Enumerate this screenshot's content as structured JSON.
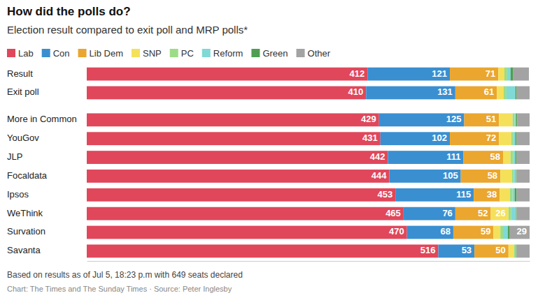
{
  "chart_data": {
    "type": "bar",
    "title": "How did the polls do?",
    "subtitle": "Election result compared to exit poll and MRP polls*",
    "orientation": "horizontal",
    "stacked": true,
    "data_labels": true,
    "tick_labels": "y",
    "legend": "top",
    "categories": [
      "Result",
      "Exit poll",
      "More in Common",
      "YouGov",
      "JLP",
      "Focaldata",
      "Ipsos",
      "WeThink",
      "Survation",
      "Savanta"
    ],
    "xlim": [
      0,
      650
    ],
    "series": [
      {
        "name": "Lab",
        "color": "#e0475b",
        "values": [
          412,
          410,
          429,
          431,
          442,
          444,
          453,
          465,
          470,
          516
        ]
      },
      {
        "name": "Con",
        "color": "#3a8fd0",
        "values": [
          121,
          131,
          125,
          102,
          111,
          105,
          115,
          76,
          68,
          53
        ]
      },
      {
        "name": "Lib Dem",
        "color": "#eaa62e",
        "values": [
          71,
          61,
          51,
          72,
          58,
          58,
          38,
          52,
          59,
          50
        ]
      },
      {
        "name": "SNP",
        "color": "#f5e05a",
        "values": [
          9,
          10,
          20,
          18,
          11,
          17,
          15,
          26,
          10,
          8
        ]
      },
      {
        "name": "PC",
        "color": "#9ddc86",
        "values": [
          4,
          4,
          3,
          3,
          4,
          3,
          4,
          4,
          4,
          3
        ]
      },
      {
        "name": "Reform",
        "color": "#7fd9d6",
        "values": [
          5,
          13,
          2,
          3,
          3,
          3,
          3,
          7,
          7,
          0
        ]
      },
      {
        "name": "Green",
        "color": "#4f9e53",
        "values": [
          4,
          2,
          2,
          2,
          2,
          1,
          3,
          1,
          3,
          1
        ]
      },
      {
        "name": "Other",
        "color": "#a3a3a3",
        "values": [
          23,
          19,
          18,
          19,
          19,
          19,
          19,
          19,
          29,
          19
        ]
      }
    ],
    "footnote": "Based on results as of Jul 5, 18:23 p.m with 649 seats declared",
    "credit": "Chart: The Times and The Sunday Times · Source: Peter Inglesby"
  }
}
